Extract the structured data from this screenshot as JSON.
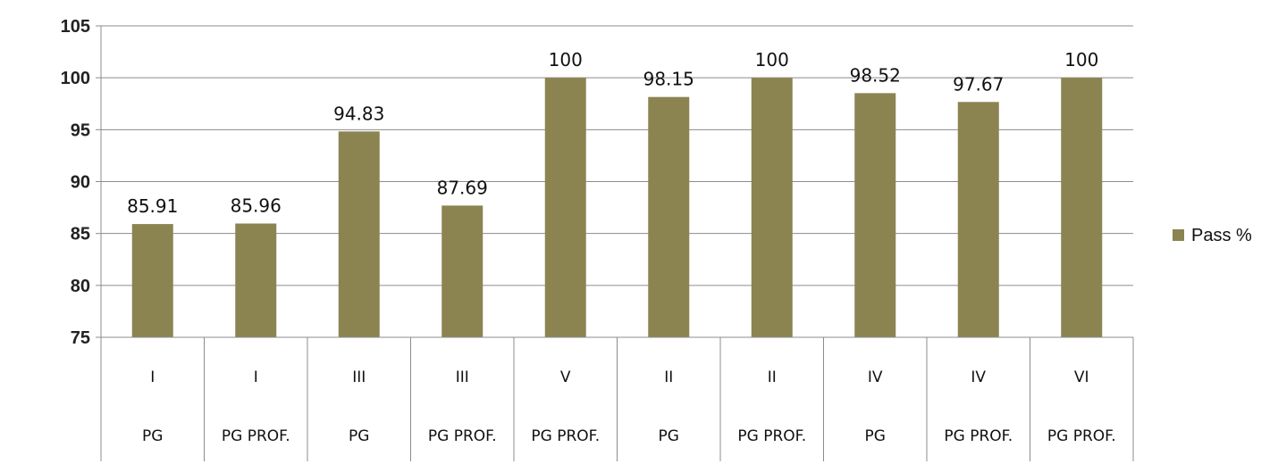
{
  "chart_data": {
    "type": "bar",
    "title": "",
    "xlabel": "",
    "ylabel": "",
    "ylim": [
      75,
      105
    ],
    "yticks": [
      75,
      80,
      85,
      90,
      95,
      100,
      105
    ],
    "grid": true,
    "legend_position": "right",
    "categories": [
      [
        "I",
        "PG"
      ],
      [
        "I",
        "PG PROF."
      ],
      [
        "III",
        "PG"
      ],
      [
        "III",
        "PG PROF."
      ],
      [
        "V",
        "PG PROF."
      ],
      [
        "II",
        "PG"
      ],
      [
        "II",
        "PG PROF."
      ],
      [
        "IV",
        "PG"
      ],
      [
        "IV",
        "PG PROF."
      ],
      [
        "VI",
        "PG PROF."
      ]
    ],
    "series": [
      {
        "name": "Pass %",
        "color": "#8b8451",
        "values": [
          85.91,
          85.96,
          94.83,
          87.69,
          100,
          98.15,
          100,
          98.52,
          97.67,
          100
        ],
        "labels": [
          "85.91",
          "85.96",
          "94.83",
          "87.69",
          "100",
          "98.15",
          "100",
          "98.52",
          "97.67",
          "100"
        ]
      }
    ]
  }
}
